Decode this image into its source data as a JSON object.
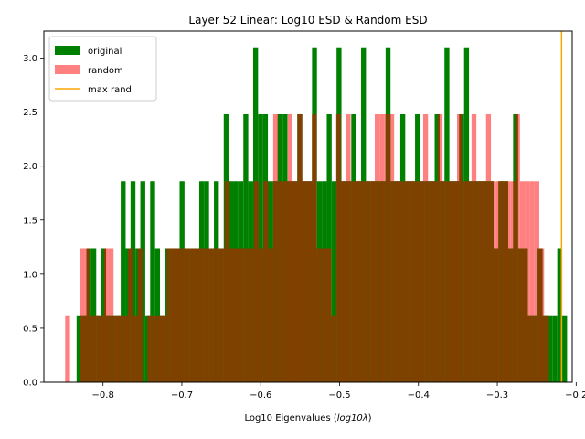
{
  "chart_data": {
    "type": "bar",
    "title": "Layer 52 Linear: Log10 ESD & Random ESD",
    "xlabel": "Log10 Eigenvalues ",
    "xlabel_math": "log10λ",
    "ylabel": "",
    "xlim": [
      -0.875,
      -0.205
    ],
    "ylim": [
      0,
      3.25
    ],
    "x_ticks": [
      -0.8,
      -0.7,
      -0.6,
      -0.5,
      -0.4,
      -0.3,
      -0.2
    ],
    "x_tick_labels": [
      "−0.8",
      "−0.7",
      "−0.6",
      "−0.5",
      "−0.4",
      "−0.3",
      "−0.2"
    ],
    "y_ticks": [
      0.0,
      0.5,
      1.0,
      1.5,
      2.0,
      2.5,
      3.0
    ],
    "y_tick_labels": [
      "0.0",
      "0.5",
      "1.0",
      "1.5",
      "2.0",
      "2.5",
      "3.0"
    ],
    "grid": false,
    "legend_position": "top-left",
    "legend": [
      {
        "label": "original",
        "kind": "patch",
        "color": "#008000"
      },
      {
        "label": "random",
        "kind": "patch",
        "color": "#ff8080"
      },
      {
        "label": "max rand",
        "kind": "line",
        "color": "#ffa500"
      }
    ],
    "max_rand_x": -0.2185,
    "overlap_color": "#804000",
    "original": {
      "name": "original",
      "color": "#008000",
      "x_start": -0.8335,
      "x_end": -0.2115,
      "bins": 100,
      "heights": [
        0.62,
        0.62,
        1.24,
        1.24,
        0.62,
        1.24,
        0.62,
        0.62,
        0.62,
        1.86,
        1.24,
        1.86,
        1.24,
        1.86,
        0.62,
        1.86,
        1.24,
        0.62,
        1.24,
        1.24,
        1.24,
        1.86,
        1.24,
        1.24,
        1.24,
        1.86,
        1.86,
        1.24,
        1.86,
        1.24,
        2.48,
        1.86,
        1.86,
        1.86,
        2.48,
        1.86,
        3.1,
        2.48,
        2.48,
        1.86,
        1.86,
        2.48,
        2.48,
        1.86,
        1.86,
        2.48,
        1.86,
        1.86,
        3.1,
        1.86,
        1.86,
        2.48,
        1.86,
        3.1,
        1.86,
        1.86,
        2.48,
        1.86,
        3.1,
        1.86,
        1.86,
        1.86,
        1.86,
        3.1,
        1.86,
        1.86,
        2.48,
        1.86,
        1.86,
        2.48,
        1.86,
        1.86,
        1.86,
        2.48,
        1.86,
        3.1,
        1.86,
        1.86,
        2.48,
        3.1,
        1.86,
        1.86,
        1.86,
        1.86,
        1.86,
        1.24,
        1.86,
        1.86,
        1.24,
        2.48,
        1.24,
        1.24,
        0.62,
        0.62,
        1.24,
        0.62,
        0.62,
        0.62,
        1.24,
        0.62
      ]
    },
    "random": {
      "name": "random",
      "color": "#ff8080",
      "x_start": -0.848,
      "x_end": -0.2345,
      "bins": 100,
      "heights": [
        0.62,
        0.0,
        0.0,
        1.24,
        1.24,
        0.62,
        0.62,
        0.62,
        1.24,
        1.24,
        0.62,
        0.62,
        0.62,
        1.24,
        0.62,
        1.24,
        0.0,
        0.62,
        0.62,
        0.62,
        0.62,
        1.24,
        1.24,
        1.24,
        1.24,
        1.24,
        1.24,
        1.24,
        1.24,
        1.24,
        1.24,
        1.24,
        1.24,
        1.86,
        1.24,
        1.24,
        1.24,
        1.24,
        1.24,
        1.86,
        1.24,
        1.86,
        1.24,
        2.48,
        1.86,
        1.86,
        2.48,
        1.86,
        2.48,
        1.86,
        1.86,
        2.48,
        1.24,
        1.24,
        1.24,
        0.62,
        2.48,
        1.86,
        2.48,
        1.86,
        1.86,
        1.86,
        1.86,
        1.86,
        2.48,
        2.48,
        2.48,
        2.48,
        1.86,
        1.86,
        1.86,
        1.86,
        1.86,
        1.86,
        2.48,
        1.86,
        1.86,
        2.48,
        1.86,
        1.86,
        1.86,
        2.48,
        1.86,
        1.86,
        2.48,
        1.86,
        1.86,
        2.48,
        1.86,
        1.86,
        1.86,
        1.86,
        1.86,
        2.48,
        1.86,
        1.86,
        1.86,
        1.86,
        1.24,
        0.62
      ]
    }
  }
}
